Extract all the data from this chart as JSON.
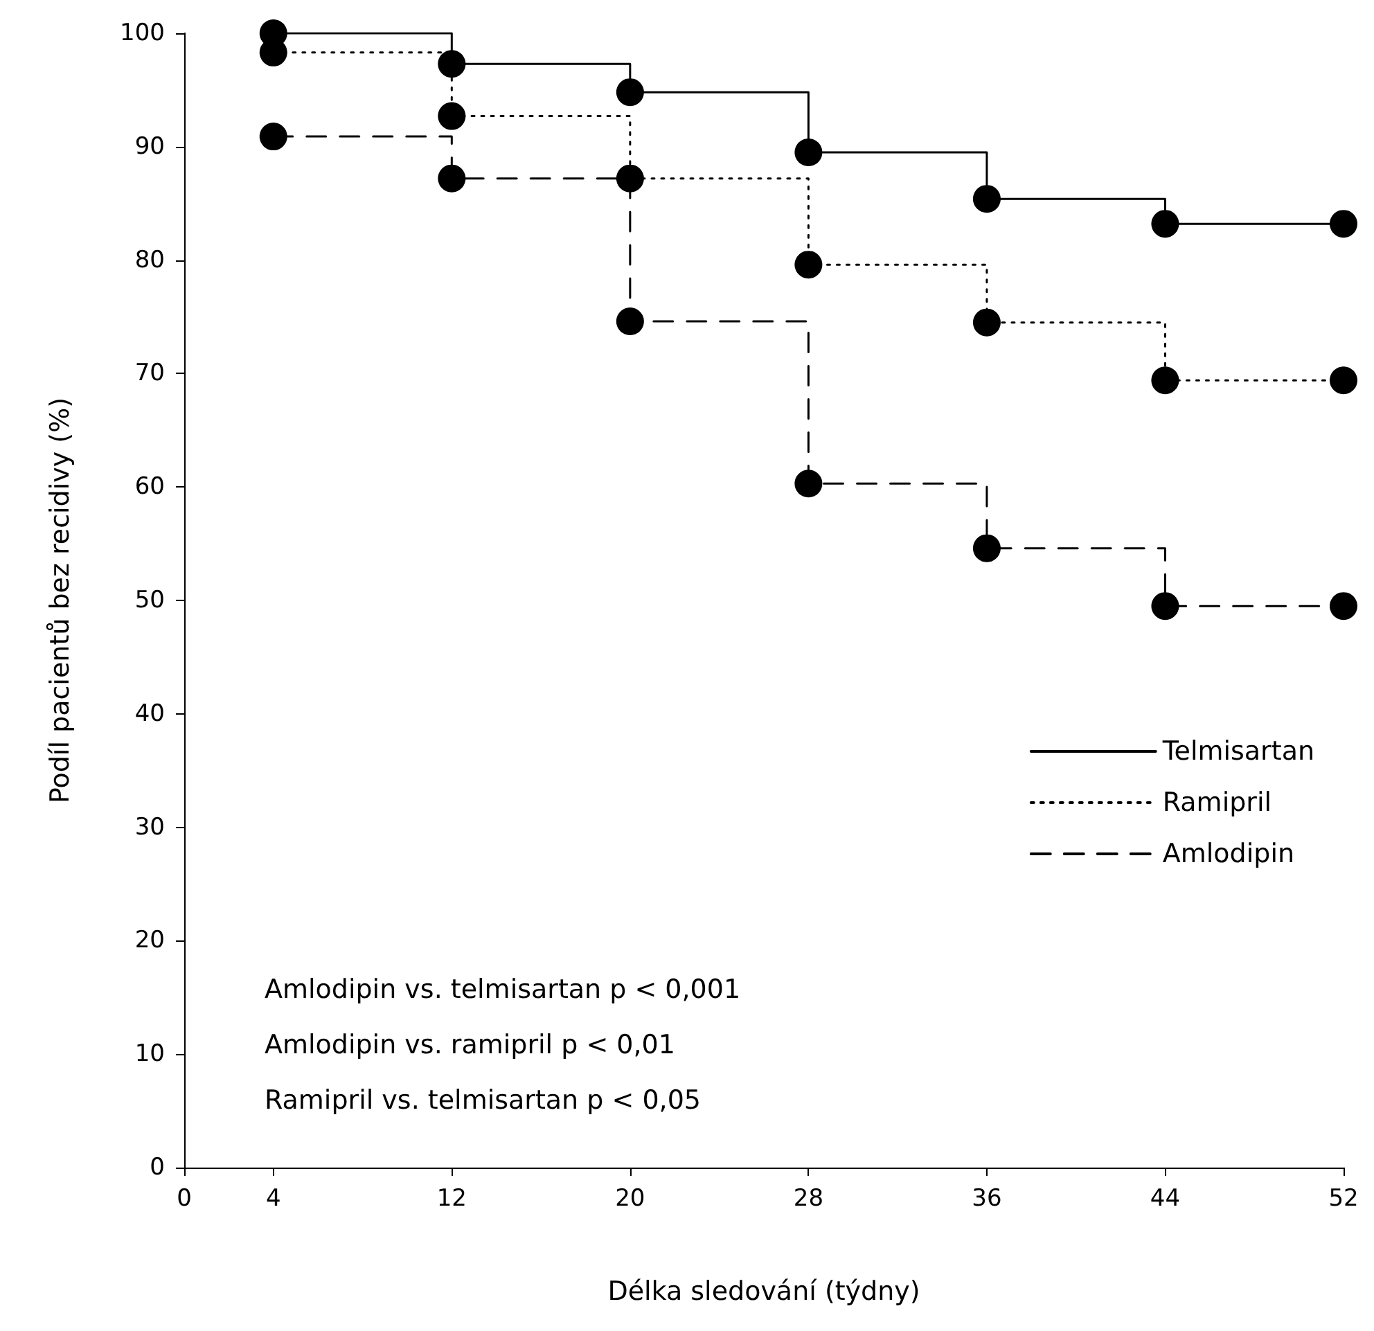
{
  "chart_data": {
    "type": "step",
    "xlabel": "Délka sledování (týdny)",
    "ylabel": "Podíl pacientů bez recidivy (%)",
    "x": [
      4,
      12,
      20,
      28,
      36,
      44,
      52
    ],
    "series": [
      {
        "name": "Telmisartan",
        "color": "#000000",
        "line_style": "solid",
        "values": [
          100,
          97.3,
          94.8,
          89.5,
          85.4,
          83.2,
          83.2
        ]
      },
      {
        "name": "Ramipril",
        "color": "#000000",
        "line_style": "dotted",
        "values": [
          98.3,
          92.7,
          87.2,
          79.6,
          74.5,
          69.4,
          69.4
        ]
      },
      {
        "name": "Amlodipin",
        "color": "#000000",
        "line_style": "dashed",
        "values": [
          90.9,
          87.2,
          74.6,
          60.3,
          54.6,
          49.5,
          49.5
        ]
      }
    ],
    "xlim": [
      0,
      52
    ],
    "xticks": [
      0,
      4,
      12,
      20,
      28,
      36,
      44,
      52
    ],
    "ylim": [
      0,
      100
    ],
    "yticks": [
      0,
      10,
      20,
      30,
      40,
      50,
      60,
      70,
      80,
      90,
      100
    ],
    "marker": "circle",
    "grid": false,
    "legend": "right",
    "annotations": [
      "Amlodipin vs. telmisartan p < 0,001",
      "Amlodipin vs. ramipril p < 0,01",
      "Ramipril vs. telmisartan p < 0,05"
    ]
  }
}
